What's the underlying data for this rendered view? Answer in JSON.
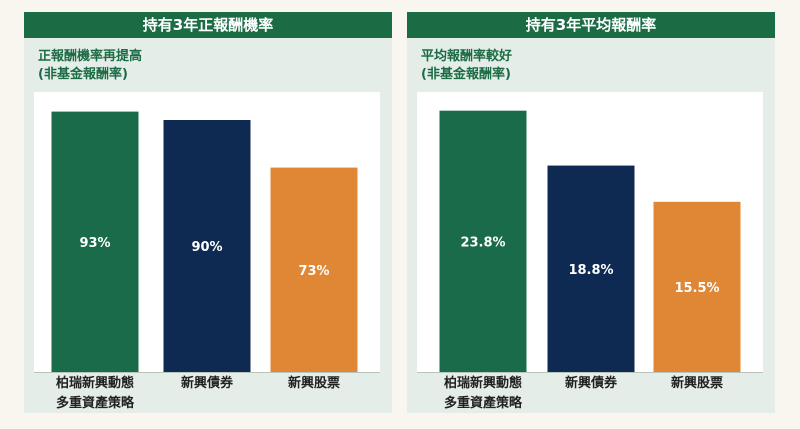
{
  "colors": {
    "green": "#1a6b4a",
    "navy": "#0f2a52",
    "orange": "#e08736",
    "header": "#1b6b45"
  },
  "chart_data": [
    {
      "type": "bar",
      "title": "持有3年正報酬機率",
      "subtitle_lines": [
        "正報酬機率再提高",
        "(非基金報酬率)"
      ],
      "categories": [
        "柏瑞新興動態多重資產策略",
        "新興債券",
        "新興股票"
      ],
      "category_lines": [
        [
          "柏瑞新興動態",
          "多重資產策略"
        ],
        [
          "新興債券"
        ],
        [
          "新興股票"
        ]
      ],
      "values": [
        93,
        90,
        73
      ],
      "value_labels": [
        "93%",
        "90%",
        "73%"
      ],
      "unit": "%",
      "ylim": [
        0,
        100
      ],
      "grid": false
    },
    {
      "type": "bar",
      "title": "持有3年平均報酬率",
      "subtitle_lines": [
        "平均報酬率較好",
        "(非基金報酬率)"
      ],
      "categories": [
        "柏瑞新興動態多重資產策略",
        "新興債券",
        "新興股票"
      ],
      "category_lines": [
        [
          "柏瑞新興動態",
          "多重資產策略"
        ],
        [
          "新興債券"
        ],
        [
          "新興股票"
        ]
      ],
      "values": [
        23.8,
        18.8,
        15.5
      ],
      "value_labels": [
        "23.8%",
        "18.8%",
        "15.5%"
      ],
      "unit": "%",
      "ylim": [
        0,
        25.5
      ],
      "grid": false
    }
  ]
}
